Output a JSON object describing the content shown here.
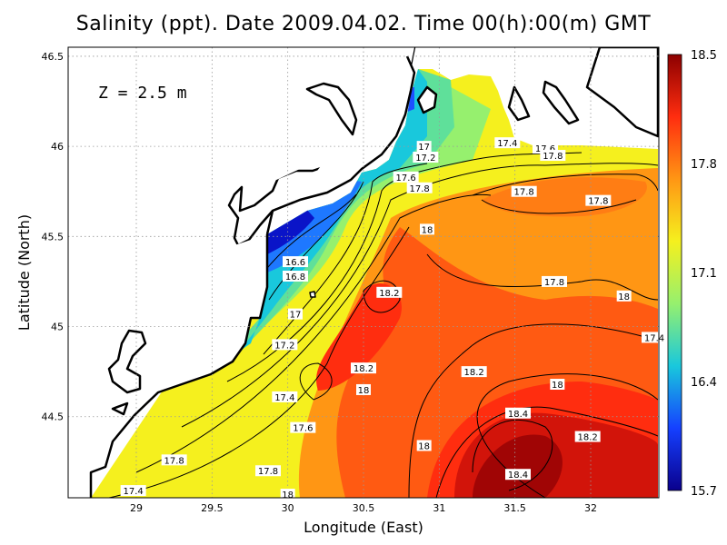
{
  "chart_data": {
    "type": "heatmap",
    "title": "Salinity (ppt). Date 2009.04.02. Time 00(h):00(m) GMT",
    "xlabel": "Longitude (East)",
    "ylabel": "Latitude (North)",
    "annotation": "Z = 2.5 m",
    "xlim": [
      28.55,
      32.45
    ],
    "ylim": [
      44.05,
      46.55
    ],
    "x_ticks": [
      "29",
      "29.5",
      "30",
      "30.5",
      "31",
      "31.5",
      "32"
    ],
    "y_ticks": [
      "44.5",
      "45",
      "45.5",
      "46",
      "46.5"
    ],
    "grid": true,
    "colorbar": {
      "min": 15.7,
      "max": 18.5,
      "ticks": [
        "18.5",
        "17.8",
        "17.1",
        "16.4",
        "15.7"
      ],
      "colors": [
        "#0a008c",
        "#1540ff",
        "#19c8dc",
        "#96f06e",
        "#f5f01e",
        "#ff9614",
        "#ff2d0f",
        "#8c0000"
      ]
    },
    "contour_labels": [
      {
        "text": "16.6",
        "lon": 30.05,
        "lat": 45.36
      },
      {
        "text": "16.8",
        "lon": 30.05,
        "lat": 45.28
      },
      {
        "text": "17",
        "lon": 30.05,
        "lat": 45.07
      },
      {
        "text": "17.2",
        "lon": 29.98,
        "lat": 44.9
      },
      {
        "text": "17.4",
        "lon": 29.98,
        "lat": 44.61
      },
      {
        "text": "17.6",
        "lon": 30.1,
        "lat": 44.44
      },
      {
        "text": "17.8",
        "lon": 29.87,
        "lat": 44.2
      },
      {
        "text": "18",
        "lon": 30.0,
        "lat": 44.07
      },
      {
        "text": "17.8",
        "lon": 29.25,
        "lat": 44.26
      },
      {
        "text": "17.4",
        "lon": 28.98,
        "lat": 44.09
      },
      {
        "text": "18.2",
        "lon": 30.5,
        "lat": 44.77
      },
      {
        "text": "18",
        "lon": 30.5,
        "lat": 44.65
      },
      {
        "text": "18",
        "lon": 30.9,
        "lat": 44.34
      },
      {
        "text": "18.2",
        "lon": 30.67,
        "lat": 45.19
      },
      {
        "text": "18",
        "lon": 30.92,
        "lat": 45.54
      },
      {
        "text": "17.6",
        "lon": 30.78,
        "lat": 45.83
      },
      {
        "text": "17.8",
        "lon": 30.87,
        "lat": 45.77
      },
      {
        "text": "17.2",
        "lon": 30.91,
        "lat": 45.94
      },
      {
        "text": "17",
        "lon": 30.9,
        "lat": 46.0
      },
      {
        "text": "17.4",
        "lon": 31.45,
        "lat": 46.02
      },
      {
        "text": "17.6",
        "lon": 31.7,
        "lat": 45.99
      },
      {
        "text": "17.8",
        "lon": 31.75,
        "lat": 45.95
      },
      {
        "text": "17.8",
        "lon": 31.56,
        "lat": 45.75
      },
      {
        "text": "17.8",
        "lon": 32.05,
        "lat": 45.7
      },
      {
        "text": "17.8",
        "lon": 31.76,
        "lat": 45.25
      },
      {
        "text": "18",
        "lon": 32.22,
        "lat": 45.17
      },
      {
        "text": "17.4",
        "lon": 32.42,
        "lat": 44.94
      },
      {
        "text": "18.2",
        "lon": 31.23,
        "lat": 44.75
      },
      {
        "text": "18",
        "lon": 31.78,
        "lat": 44.68
      },
      {
        "text": "18.4",
        "lon": 31.52,
        "lat": 44.52
      },
      {
        "text": "18.2",
        "lon": 31.98,
        "lat": 44.39
      },
      {
        "text": "18.4",
        "lon": 31.52,
        "lat": 44.18
      }
    ]
  }
}
